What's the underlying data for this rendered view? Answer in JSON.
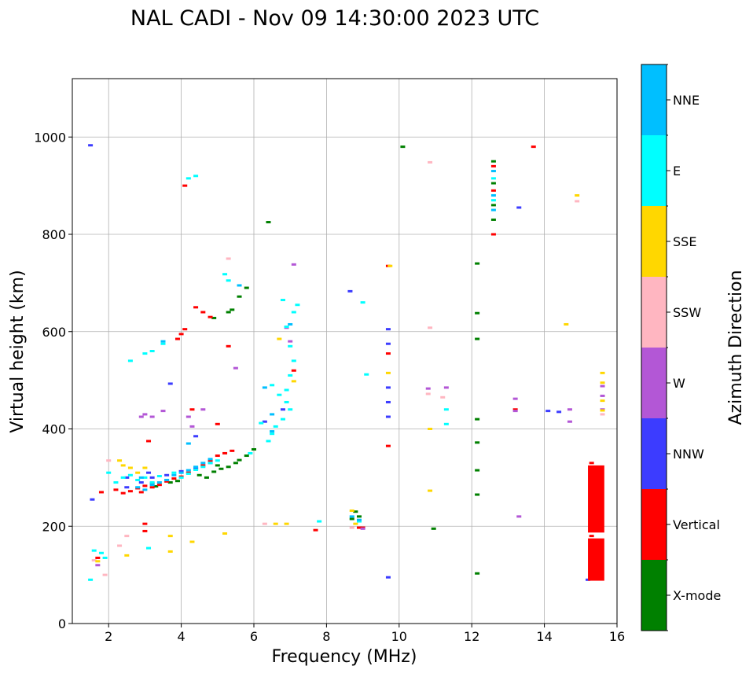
{
  "chart_data": {
    "type": "scatter",
    "title": "NAL CADI - Nov 09 14:30:00 2023 UTC",
    "xlabel": "Frequency (MHz)",
    "ylabel": "Virtual height (km)",
    "xlim": [
      1,
      16
    ],
    "ylim": [
      0,
      1120
    ],
    "xticks": [
      2,
      4,
      6,
      8,
      10,
      12,
      14,
      16
    ],
    "yticks": [
      0,
      200,
      400,
      600,
      800,
      1000
    ],
    "grid": true,
    "colorbar": {
      "label": "Azimuth Direction",
      "categories": [
        {
          "name": "X-mode",
          "color": "#008000"
        },
        {
          "name": "Vertical",
          "color": "#ff0000"
        },
        {
          "name": "NNW",
          "color": "#3c3cff"
        },
        {
          "name": "W",
          "color": "#b357d6"
        },
        {
          "name": "SSW",
          "color": "#ffb6c1"
        },
        {
          "name": "SSE",
          "color": "#ffd700"
        },
        {
          "name": "E",
          "color": "#00ffff"
        },
        {
          "name": "NNE",
          "color": "#00bfff"
        }
      ]
    },
    "series": [
      {
        "name": "X-mode",
        "points": [
          [
            3.3,
            282
          ],
          [
            3.7,
            290
          ],
          [
            4.5,
            305
          ],
          [
            4.9,
            312
          ],
          [
            5.1,
            318
          ],
          [
            5.3,
            322
          ],
          [
            5.5,
            330
          ],
          [
            5.6,
            336
          ],
          [
            5.8,
            345
          ],
          [
            6.0,
            358
          ],
          [
            5.4,
            645
          ],
          [
            5.6,
            672
          ],
          [
            5.8,
            690
          ],
          [
            4.9,
            628
          ],
          [
            5.3,
            640
          ],
          [
            6.4,
            825
          ],
          [
            8.8,
            230
          ],
          [
            8.9,
            220
          ],
          [
            8.7,
            215
          ],
          [
            10.1,
            980
          ],
          [
            10.95,
            195
          ],
          [
            12.15,
            740
          ],
          [
            12.15,
            638
          ],
          [
            12.15,
            585
          ],
          [
            12.15,
            420
          ],
          [
            12.15,
            372
          ],
          [
            12.15,
            315
          ],
          [
            12.15,
            265
          ],
          [
            12.15,
            103
          ],
          [
            12.6,
            830
          ],
          [
            12.6,
            860
          ],
          [
            12.6,
            905
          ],
          [
            12.6,
            950
          ],
          [
            5.0,
            325
          ],
          [
            4.7,
            300
          ],
          [
            3.9,
            293
          ]
        ]
      },
      {
        "name": "Vertical",
        "points": [
          [
            1.8,
            270
          ],
          [
            2.2,
            275
          ],
          [
            2.4,
            268
          ],
          [
            2.6,
            272
          ],
          [
            2.8,
            278
          ],
          [
            3.0,
            283
          ],
          [
            3.2,
            288
          ],
          [
            3.4,
            285
          ],
          [
            3.6,
            292
          ],
          [
            3.8,
            298
          ],
          [
            4.0,
            302
          ],
          [
            4.2,
            310
          ],
          [
            4.4,
            318
          ],
          [
            4.6,
            325
          ],
          [
            4.8,
            335
          ],
          [
            5.0,
            345
          ],
          [
            5.2,
            350
          ],
          [
            5.4,
            355
          ],
          [
            3.0,
            205
          ],
          [
            3.0,
            190
          ],
          [
            3.1,
            375
          ],
          [
            3.9,
            585
          ],
          [
            4.0,
            595
          ],
          [
            4.1,
            605
          ],
          [
            4.1,
            900
          ],
          [
            4.4,
            650
          ],
          [
            4.6,
            640
          ],
          [
            4.3,
            440
          ],
          [
            5.0,
            410
          ],
          [
            5.3,
            570
          ],
          [
            4.8,
            630
          ],
          [
            7.1,
            520
          ],
          [
            7.7,
            192
          ],
          [
            8.9,
            197
          ],
          [
            9.0,
            197
          ],
          [
            9.7,
            365
          ],
          [
            9.7,
            735
          ],
          [
            9.7,
            555
          ],
          [
            12.6,
            940
          ],
          [
            12.6,
            890
          ],
          [
            12.6,
            800
          ],
          [
            13.2,
            440
          ],
          [
            13.7,
            980
          ],
          [
            15.3,
            330
          ],
          [
            15.3,
            300
          ],
          [
            15.3,
            250
          ],
          [
            15.3,
            215
          ],
          [
            15.3,
            180
          ],
          [
            15.3,
            140
          ],
          [
            15.3,
            100
          ],
          [
            1.7,
            135
          ],
          [
            2.9,
            270
          ],
          [
            3.2,
            280
          ]
        ]
      },
      {
        "name": "NNW",
        "points": [
          [
            1.5,
            983
          ],
          [
            1.55,
            255
          ],
          [
            2.5,
            280
          ],
          [
            2.9,
            290
          ],
          [
            3.2,
            300
          ],
          [
            3.6,
            305
          ],
          [
            4.0,
            313
          ],
          [
            4.4,
            320
          ],
          [
            4.8,
            330
          ],
          [
            3.7,
            493
          ],
          [
            4.4,
            385
          ],
          [
            6.3,
            415
          ],
          [
            6.8,
            440
          ],
          [
            8.65,
            683
          ],
          [
            9.7,
            605
          ],
          [
            9.7,
            575
          ],
          [
            9.7,
            455
          ],
          [
            9.7,
            425
          ],
          [
            9.7,
            95
          ],
          [
            13.3,
            855
          ],
          [
            14.1,
            437
          ],
          [
            14.4,
            435
          ],
          [
            15.2,
            90
          ],
          [
            15.3,
            290
          ],
          [
            9.7,
            485
          ],
          [
            2.5,
            300
          ],
          [
            3.1,
            310
          ]
        ]
      },
      {
        "name": "W",
        "points": [
          [
            2.9,
            425
          ],
          [
            3.0,
            430
          ],
          [
            3.2,
            425
          ],
          [
            3.5,
            437
          ],
          [
            4.2,
            425
          ],
          [
            4.6,
            440
          ],
          [
            4.3,
            405
          ],
          [
            5.5,
            525
          ],
          [
            6.9,
            608
          ],
          [
            7.0,
            580
          ],
          [
            7.1,
            738
          ],
          [
            10.8,
            483
          ],
          [
            11.3,
            485
          ],
          [
            13.2,
            462
          ],
          [
            13.2,
            437
          ],
          [
            13.3,
            220
          ],
          [
            14.7,
            440
          ],
          [
            14.7,
            415
          ],
          [
            15.6,
            468
          ],
          [
            15.6,
            440
          ],
          [
            15.6,
            488
          ],
          [
            9.0,
            195
          ],
          [
            1.7,
            120
          ]
        ]
      },
      {
        "name": "SSW",
        "points": [
          [
            1.6,
            130
          ],
          [
            2.0,
            335
          ],
          [
            2.3,
            160
          ],
          [
            2.5,
            180
          ],
          [
            5.3,
            750
          ],
          [
            6.3,
            205
          ],
          [
            10.85,
            948
          ],
          [
            10.8,
            472
          ],
          [
            10.85,
            608
          ],
          [
            11.2,
            465
          ],
          [
            14.9,
            868
          ],
          [
            15.6,
            430
          ],
          [
            8.7,
            197
          ],
          [
            1.9,
            100
          ]
        ]
      },
      {
        "name": "SSE",
        "points": [
          [
            2.3,
            335
          ],
          [
            2.4,
            325
          ],
          [
            2.6,
            320
          ],
          [
            2.5,
            140
          ],
          [
            2.8,
            310
          ],
          [
            3.0,
            320
          ],
          [
            3.7,
            180
          ],
          [
            3.7,
            148
          ],
          [
            4.3,
            168
          ],
          [
            5.2,
            185
          ],
          [
            6.6,
            205
          ],
          [
            6.9,
            205
          ],
          [
            7.1,
            498
          ],
          [
            6.7,
            585
          ],
          [
            8.7,
            232
          ],
          [
            8.8,
            205
          ],
          [
            9.7,
            515
          ],
          [
            9.75,
            735
          ],
          [
            10.85,
            400
          ],
          [
            10.85,
            273
          ],
          [
            14.6,
            615
          ],
          [
            14.9,
            880
          ],
          [
            15.6,
            515
          ],
          [
            15.6,
            495
          ],
          [
            15.6,
            458
          ],
          [
            15.6,
            438
          ],
          [
            1.7,
            128
          ]
        ]
      },
      {
        "name": "E",
        "points": [
          [
            1.5,
            90
          ],
          [
            1.6,
            150
          ],
          [
            1.8,
            145
          ],
          [
            2.0,
            310
          ],
          [
            2.2,
            290
          ],
          [
            2.4,
            300
          ],
          [
            2.6,
            305
          ],
          [
            2.8,
            295
          ],
          [
            3.0,
            300
          ],
          [
            3.2,
            290
          ],
          [
            3.4,
            303
          ],
          [
            3.6,
            295
          ],
          [
            3.8,
            310
          ],
          [
            4.0,
            300
          ],
          [
            4.2,
            308
          ],
          [
            4.4,
            316
          ],
          [
            4.6,
            322
          ],
          [
            4.8,
            330
          ],
          [
            5.0,
            335
          ],
          [
            3.0,
            555
          ],
          [
            3.2,
            560
          ],
          [
            3.5,
            575
          ],
          [
            4.2,
            915
          ],
          [
            4.4,
            920
          ],
          [
            5.2,
            718
          ],
          [
            5.3,
            705
          ],
          [
            6.5,
            490
          ],
          [
            6.7,
            470
          ],
          [
            6.9,
            455
          ],
          [
            7.0,
            440
          ],
          [
            6.8,
            420
          ],
          [
            6.6,
            405
          ],
          [
            6.5,
            390
          ],
          [
            6.4,
            375
          ],
          [
            6.9,
            480
          ],
          [
            7.0,
            510
          ],
          [
            7.1,
            540
          ],
          [
            7.0,
            570
          ],
          [
            6.9,
            610
          ],
          [
            7.1,
            640
          ],
          [
            7.2,
            655
          ],
          [
            6.8,
            665
          ],
          [
            6.2,
            412
          ],
          [
            3.1,
            155
          ],
          [
            2.6,
            540
          ],
          [
            5.9,
            350
          ],
          [
            9.0,
            660
          ],
          [
            9.1,
            512
          ],
          [
            11.3,
            440
          ],
          [
            11.3,
            410
          ],
          [
            12.6,
            870
          ],
          [
            12.6,
            915
          ],
          [
            7.8,
            210
          ],
          [
            8.9,
            210
          ],
          [
            1.9,
            135
          ]
        ]
      },
      {
        "name": "NNE",
        "points": [
          [
            2.8,
            280
          ],
          [
            3.0,
            275
          ],
          [
            3.2,
            285
          ],
          [
            3.4,
            290
          ],
          [
            3.6,
            295
          ],
          [
            3.8,
            305
          ],
          [
            4.0,
            310
          ],
          [
            4.2,
            315
          ],
          [
            4.4,
            322
          ],
          [
            4.6,
            330
          ],
          [
            4.8,
            338
          ],
          [
            3.5,
            580
          ],
          [
            4.2,
            370
          ],
          [
            6.3,
            485
          ],
          [
            6.5,
            430
          ],
          [
            6.5,
            395
          ],
          [
            5.6,
            695
          ],
          [
            7.0,
            615
          ],
          [
            12.6,
            850
          ],
          [
            12.6,
            880
          ],
          [
            12.6,
            930
          ],
          [
            8.7,
            220
          ],
          [
            8.9,
            213
          ],
          [
            2.9,
            300
          ]
        ]
      }
    ],
    "blocks": [
      {
        "category": "Vertical",
        "freq": [
          15.2,
          15.65
        ],
        "height": [
          88,
          175
        ]
      },
      {
        "category": "Vertical",
        "freq": [
          15.2,
          15.65
        ],
        "height": [
          187,
          325
        ]
      }
    ]
  }
}
